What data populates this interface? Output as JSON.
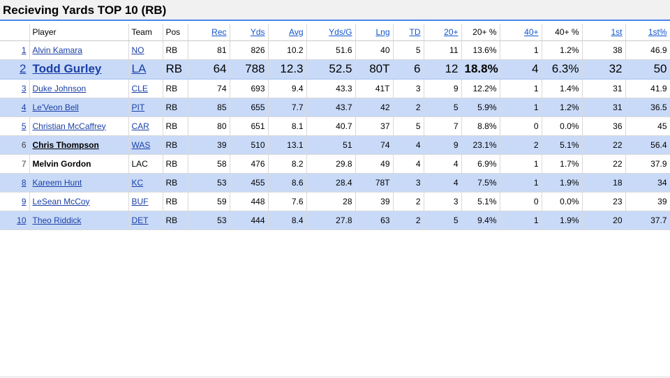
{
  "title": "Recieving Yards TOP 10 (RB)",
  "columns": [
    "",
    "Player",
    "Team",
    "Pos",
    "Rec",
    "Yds",
    "Avg",
    "Yds/G",
    "Lng",
    "TD",
    "20+",
    "20+ %",
    "40+",
    "40+ %",
    "1st",
    "1st%"
  ],
  "rows": [
    {
      "rank": "1",
      "player": "Alvin Kamara",
      "team": "NO",
      "pos": "RB",
      "rec": "81",
      "yds": "826",
      "avg": "10.2",
      "ydsg": "51.6",
      "lng": "40",
      "td": "5",
      "t20": "11",
      "t20p": "13.6%",
      "t40": "1",
      "t40p": "1.2%",
      "first": "38",
      "firstp": "46.9"
    },
    {
      "rank": "2",
      "player": "Todd Gurley",
      "team": "LA",
      "pos": "RB",
      "rec": "64",
      "yds": "788",
      "avg": "12.3",
      "ydsg": "52.5",
      "lng": "80T",
      "td": "6",
      "t20": "12",
      "t20p": "18.8%",
      "t40": "4",
      "t40p": "6.3%",
      "first": "32",
      "firstp": "50"
    },
    {
      "rank": "3",
      "player": "Duke Johnson",
      "team": "CLE",
      "pos": "RB",
      "rec": "74",
      "yds": "693",
      "avg": "9.4",
      "ydsg": "43.3",
      "lng": "41T",
      "td": "3",
      "t20": "9",
      "t20p": "12.2%",
      "t40": "1",
      "t40p": "1.4%",
      "first": "31",
      "firstp": "41.9"
    },
    {
      "rank": "4",
      "player": "Le'Veon Bell",
      "team": "PIT",
      "pos": "RB",
      "rec": "85",
      "yds": "655",
      "avg": "7.7",
      "ydsg": "43.7",
      "lng": "42",
      "td": "2",
      "t20": "5",
      "t20p": "5.9%",
      "t40": "1",
      "t40p": "1.2%",
      "first": "31",
      "firstp": "36.5"
    },
    {
      "rank": "5",
      "player": "Christian McCaffrey",
      "team": "CAR",
      "pos": "RB",
      "rec": "80",
      "yds": "651",
      "avg": "8.1",
      "ydsg": "40.7",
      "lng": "37",
      "td": "5",
      "t20": "7",
      "t20p": "8.8%",
      "t40": "0",
      "t40p": "0.0%",
      "first": "36",
      "firstp": "45"
    },
    {
      "rank": "6",
      "player": "Chris Thompson",
      "team": "WAS",
      "pos": "RB",
      "rec": "39",
      "yds": "510",
      "avg": "13.1",
      "ydsg": "51",
      "lng": "74",
      "td": "4",
      "t20": "9",
      "t20p": "23.1%",
      "t40": "2",
      "t40p": "5.1%",
      "first": "22",
      "firstp": "56.4"
    },
    {
      "rank": "7",
      "player": "Melvin Gordon",
      "team": "LAC",
      "pos": "RB",
      "rec": "58",
      "yds": "476",
      "avg": "8.2",
      "ydsg": "29.8",
      "lng": "49",
      "td": "4",
      "t20": "4",
      "t20p": "6.9%",
      "t40": "1",
      "t40p": "1.7%",
      "first": "22",
      "firstp": "37.9"
    },
    {
      "rank": "8",
      "player": "Kareem Hunt",
      "team": "KC",
      "pos": "RB",
      "rec": "53",
      "yds": "455",
      "avg": "8.6",
      "ydsg": "28.4",
      "lng": "78T",
      "td": "3",
      "t20": "4",
      "t20p": "7.5%",
      "t40": "1",
      "t40p": "1.9%",
      "first": "18",
      "firstp": "34"
    },
    {
      "rank": "9",
      "player": "LeSean McCoy",
      "team": "BUF",
      "pos": "RB",
      "rec": "59",
      "yds": "448",
      "avg": "7.6",
      "ydsg": "28",
      "lng": "39",
      "td": "2",
      "t20": "3",
      "t20p": "5.1%",
      "t40": "0",
      "t40p": "0.0%",
      "first": "23",
      "firstp": "39"
    },
    {
      "rank": "10",
      "player": "Theo Riddick",
      "team": "DET",
      "pos": "RB",
      "rec": "53",
      "yds": "444",
      "avg": "8.4",
      "ydsg": "27.8",
      "lng": "63",
      "td": "2",
      "t20": "5",
      "t20p": "9.4%",
      "t40": "1",
      "t40p": "1.9%",
      "first": "20",
      "firstp": "37.7"
    }
  ],
  "colors": {
    "accent": "#4a86e8",
    "row_alt": "#c9daf8",
    "link": "#1155cc",
    "sorted_header": "#dcdcdc"
  }
}
